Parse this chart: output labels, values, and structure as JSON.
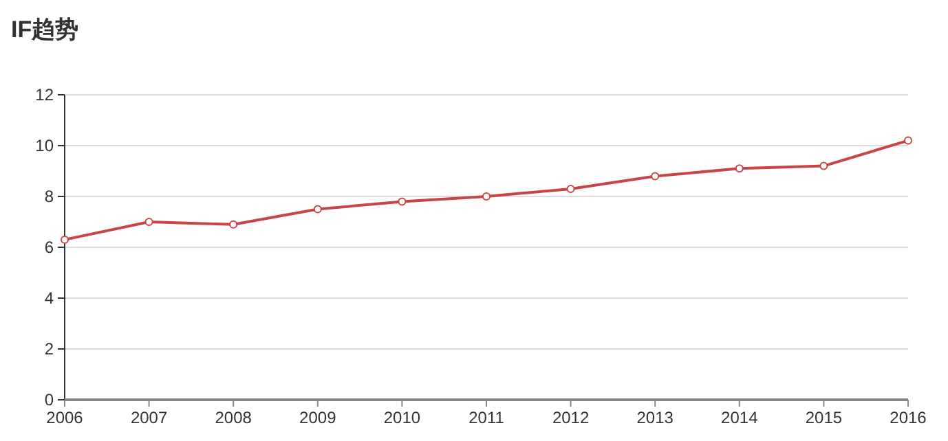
{
  "chart_data": {
    "type": "line",
    "title": "IF趋势",
    "categories": [
      "2006",
      "2007",
      "2008",
      "2009",
      "2010",
      "2011",
      "2012",
      "2013",
      "2014",
      "2015",
      "2016"
    ],
    "series": [
      {
        "color": "#c94545",
        "values": [
          6.3,
          7.0,
          6.9,
          7.5,
          7.8,
          8.0,
          8.3,
          8.8,
          9.1,
          9.2,
          10.2
        ]
      }
    ],
    "ylim": [
      0,
      12
    ],
    "yticks": [
      0,
      2,
      4,
      6,
      8,
      10,
      12
    ],
    "grid": "y",
    "marker": "circle",
    "line_style": "solid"
  }
}
